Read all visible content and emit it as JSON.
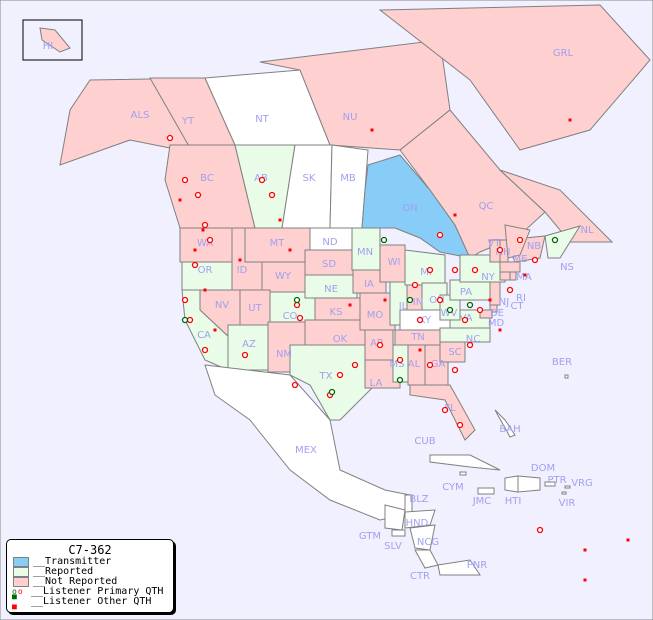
{
  "legend": {
    "title": "C7-362",
    "items": [
      {
        "label": "__Transmitter",
        "color": "#88ccf8"
      },
      {
        "label": "__Reported",
        "color": "#e8fce8"
      },
      {
        "label": "__Not Reported",
        "color": "#ffd0d0"
      },
      {
        "label": "__Listener Primary QTH",
        "marker": "circle"
      },
      {
        "label": "__Listener Other QTH",
        "marker": "square"
      }
    ]
  },
  "colors": {
    "ocean": "#f0f0ff",
    "transmitter": "#88ccf8",
    "reported": "#e8fce8",
    "not_reported": "#ffd0d0",
    "no_data": "#ffffff",
    "label": "#a0a0f0",
    "marker_red": "#ff0000",
    "marker_green": "#006600"
  },
  "regions": [
    {
      "code": "HI",
      "status": "not_reported"
    },
    {
      "code": "ALS",
      "status": "not_reported"
    },
    {
      "code": "YT",
      "status": "not_reported"
    },
    {
      "code": "NT",
      "status": "no_data"
    },
    {
      "code": "NU",
      "status": "not_reported"
    },
    {
      "code": "GRL",
      "status": "not_reported"
    },
    {
      "code": "BC",
      "status": "not_reported"
    },
    {
      "code": "AB",
      "status": "reported"
    },
    {
      "code": "SK",
      "status": "no_data"
    },
    {
      "code": "MB",
      "status": "no_data"
    },
    {
      "code": "ON",
      "status": "transmitter"
    },
    {
      "code": "QC",
      "status": "not_reported"
    },
    {
      "code": "NL",
      "status": "not_reported"
    },
    {
      "code": "NB",
      "status": "not_reported"
    },
    {
      "code": "NS",
      "status": "reported"
    },
    {
      "code": "WA",
      "status": "not_reported"
    },
    {
      "code": "OR",
      "status": "reported"
    },
    {
      "code": "ID",
      "status": "not_reported"
    },
    {
      "code": "MT",
      "status": "not_reported"
    },
    {
      "code": "WY",
      "status": "not_reported"
    },
    {
      "code": "NV",
      "status": "not_reported"
    },
    {
      "code": "UT",
      "status": "not_reported"
    },
    {
      "code": "CO",
      "status": "reported"
    },
    {
      "code": "CA",
      "status": "reported"
    },
    {
      "code": "AZ",
      "status": "reported"
    },
    {
      "code": "NM",
      "status": "not_reported"
    },
    {
      "code": "ND",
      "status": "no_data"
    },
    {
      "code": "SD",
      "status": "not_reported"
    },
    {
      "code": "NE",
      "status": "reported"
    },
    {
      "code": "KS",
      "status": "not_reported"
    },
    {
      "code": "OK",
      "status": "not_reported"
    },
    {
      "code": "TX",
      "status": "reported"
    },
    {
      "code": "MN",
      "status": "reported"
    },
    {
      "code": "IA",
      "status": "not_reported"
    },
    {
      "code": "MO",
      "status": "not_reported"
    },
    {
      "code": "AR",
      "status": "not_reported"
    },
    {
      "code": "LA",
      "status": "not_reported"
    },
    {
      "code": "WI",
      "status": "not_reported"
    },
    {
      "code": "IL",
      "status": "reported"
    },
    {
      "code": "MI",
      "status": "reported"
    },
    {
      "code": "IN",
      "status": "not_reported"
    },
    {
      "code": "OH",
      "status": "reported"
    },
    {
      "code": "KY",
      "status": "no_data"
    },
    {
      "code": "TN",
      "status": "not_reported"
    },
    {
      "code": "MS",
      "status": "reported"
    },
    {
      "code": "AL",
      "status": "not_reported"
    },
    {
      "code": "GA",
      "status": "not_reported"
    },
    {
      "code": "FL",
      "status": "not_reported"
    },
    {
      "code": "SC",
      "status": "not_reported"
    },
    {
      "code": "NC",
      "status": "reported"
    },
    {
      "code": "VA",
      "status": "reported"
    },
    {
      "code": "WV",
      "status": "reported"
    },
    {
      "code": "PA",
      "status": "reported"
    },
    {
      "code": "NY",
      "status": "reported"
    },
    {
      "code": "VT",
      "status": "not_reported"
    },
    {
      "code": "NH",
      "status": "not_reported"
    },
    {
      "code": "ME",
      "status": "not_reported"
    },
    {
      "code": "MA",
      "status": "not_reported"
    },
    {
      "code": "CT",
      "status": "not_reported"
    },
    {
      "code": "RI",
      "status": "not_reported"
    },
    {
      "code": "NJ",
      "status": "not_reported"
    },
    {
      "code": "DE",
      "status": "not_reported"
    },
    {
      "code": "MD",
      "status": "not_reported"
    },
    {
      "code": "MEX",
      "status": "no_data"
    },
    {
      "code": "BER",
      "status": "no_data"
    },
    {
      "code": "BAH",
      "status": "no_data"
    },
    {
      "code": "CUB",
      "status": "no_data"
    },
    {
      "code": "CYM",
      "status": "no_data"
    },
    {
      "code": "JMC",
      "status": "no_data"
    },
    {
      "code": "HTI",
      "status": "no_data"
    },
    {
      "code": "DOM",
      "status": "no_data"
    },
    {
      "code": "PTR",
      "status": "no_data"
    },
    {
      "code": "VRG",
      "status": "no_data"
    },
    {
      "code": "VIR",
      "status": "no_data"
    },
    {
      "code": "BLZ",
      "status": "no_data"
    },
    {
      "code": "GTM",
      "status": "no_data"
    },
    {
      "code": "HND",
      "status": "no_data"
    },
    {
      "code": "SLV",
      "status": "no_data"
    },
    {
      "code": "NCG",
      "status": "no_data"
    },
    {
      "code": "CTR",
      "status": "no_data"
    },
    {
      "code": "PNR",
      "status": "no_data"
    }
  ]
}
